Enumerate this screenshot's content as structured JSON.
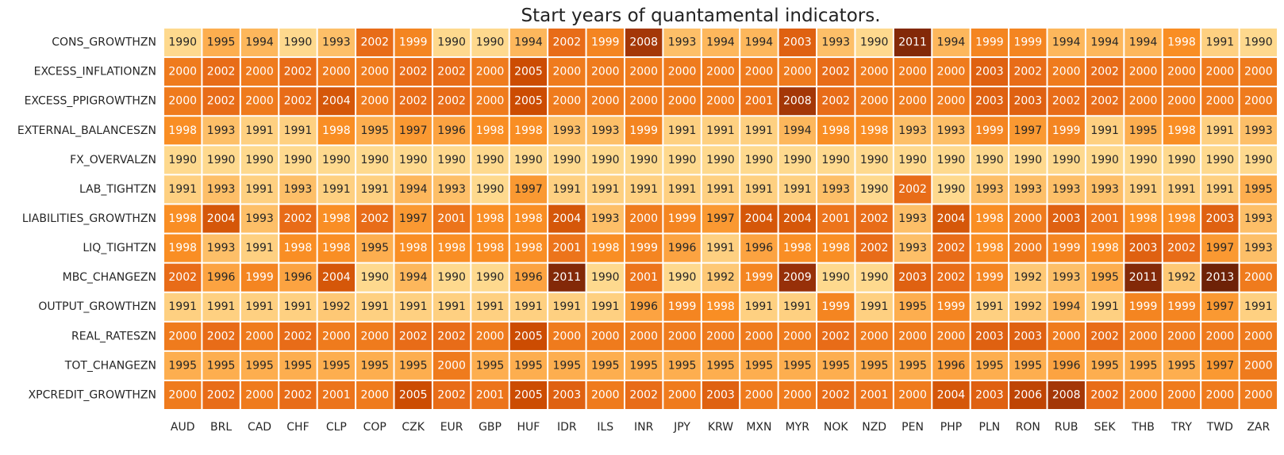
{
  "chart_data": {
    "type": "heatmap",
    "title": "Start years of quantamental indicators.",
    "xlabel": "",
    "ylabel": "",
    "columns": [
      "AUD",
      "BRL",
      "CAD",
      "CHF",
      "CLP",
      "COP",
      "CZK",
      "EUR",
      "GBP",
      "HUF",
      "IDR",
      "ILS",
      "INR",
      "JPY",
      "KRW",
      "MXN",
      "MYR",
      "NOK",
      "NZD",
      "PEN",
      "PHP",
      "PLN",
      "RON",
      "RUB",
      "SEK",
      "THB",
      "TRY",
      "TWD",
      "ZAR"
    ],
    "rows": [
      "CONS_GROWTHZN",
      "EXCESS_INFLATIONZN",
      "EXCESS_PPIGROWTHZN",
      "EXTERNAL_BALANCESZN",
      "FX_OVERVALZN",
      "LAB_TIGHTZN",
      "LIABILITIES_GROWTHZN",
      "LIQ_TIGHTZN",
      "MBC_CHANGEZN",
      "OUTPUT_GROWTHZN",
      "REAL_RATESZN",
      "TOT_CHANGEZN",
      "XPCREDIT_GROWTHZN"
    ],
    "values": [
      [
        1990,
        1995,
        1994,
        1990,
        1993,
        2002,
        1999,
        1990,
        1990,
        1994,
        2002,
        1999,
        2008,
        1993,
        1994,
        1994,
        2003,
        1993,
        1990,
        2011,
        1994,
        1999,
        1999,
        1994,
        1994,
        1994,
        1998,
        1991,
        1990
      ],
      [
        2000,
        2002,
        2000,
        2002,
        2000,
        2000,
        2002,
        2002,
        2000,
        2005,
        2000,
        2000,
        2000,
        2000,
        2000,
        2000,
        2000,
        2002,
        2000,
        2000,
        2000,
        2003,
        2002,
        2000,
        2002,
        2000,
        2000,
        2000,
        2000
      ],
      [
        2000,
        2002,
        2000,
        2002,
        2004,
        2000,
        2002,
        2002,
        2000,
        2005,
        2000,
        2000,
        2000,
        2000,
        2000,
        2001,
        2008,
        2002,
        2000,
        2000,
        2000,
        2003,
        2003,
        2002,
        2002,
        2000,
        2000,
        2000,
        2000
      ],
      [
        1998,
        1993,
        1991,
        1991,
        1998,
        1995,
        1997,
        1996,
        1998,
        1998,
        1993,
        1993,
        1999,
        1991,
        1991,
        1991,
        1994,
        1998,
        1998,
        1993,
        1993,
        1999,
        1997,
        1999,
        1991,
        1995,
        1998,
        1991,
        1993
      ],
      [
        1990,
        1990,
        1990,
        1990,
        1990,
        1990,
        1990,
        1990,
        1990,
        1990,
        1990,
        1990,
        1990,
        1990,
        1990,
        1990,
        1990,
        1990,
        1990,
        1990,
        1990,
        1990,
        1990,
        1990,
        1990,
        1990,
        1990,
        1990,
        1990
      ],
      [
        1991,
        1993,
        1991,
        1993,
        1991,
        1991,
        1994,
        1993,
        1990,
        1997,
        1991,
        1991,
        1991,
        1991,
        1991,
        1991,
        1991,
        1993,
        1990,
        2002,
        1990,
        1993,
        1993,
        1993,
        1993,
        1991,
        1991,
        1991,
        1995
      ],
      [
        1998,
        2004,
        1993,
        2002,
        1998,
        2002,
        1997,
        2001,
        1998,
        1998,
        2004,
        1993,
        2000,
        1999,
        1997,
        2004,
        2004,
        2001,
        2002,
        1993,
        2004,
        1998,
        2000,
        2003,
        2001,
        1998,
        1998,
        2003,
        1993
      ],
      [
        1998,
        1993,
        1991,
        1998,
        1998,
        1995,
        1998,
        1998,
        1998,
        1998,
        2001,
        1998,
        1999,
        1996,
        1991,
        1996,
        1998,
        1998,
        2002,
        1993,
        2002,
        1998,
        2000,
        1999,
        1998,
        2003,
        2002,
        1997,
        1993
      ],
      [
        2002,
        1996,
        1999,
        1996,
        2004,
        1990,
        1994,
        1990,
        1990,
        1996,
        2011,
        1990,
        2001,
        1990,
        1992,
        1999,
        2009,
        1990,
        1990,
        2003,
        2002,
        1999,
        1992,
        1993,
        1995,
        2011,
        1992,
        2013,
        2000
      ],
      [
        1991,
        1991,
        1991,
        1991,
        1992,
        1991,
        1991,
        1991,
        1991,
        1991,
        1991,
        1991,
        1996,
        1999,
        1998,
        1991,
        1991,
        1999,
        1991,
        1995,
        1999,
        1991,
        1992,
        1994,
        1991,
        1999,
        1999,
        1997,
        1991
      ],
      [
        2000,
        2002,
        2000,
        2002,
        2000,
        2000,
        2002,
        2002,
        2000,
        2005,
        2000,
        2000,
        2000,
        2000,
        2000,
        2000,
        2000,
        2002,
        2000,
        2000,
        2000,
        2003,
        2003,
        2000,
        2002,
        2000,
        2000,
        2000,
        2000
      ],
      [
        1995,
        1995,
        1995,
        1995,
        1995,
        1995,
        1995,
        2000,
        1995,
        1995,
        1995,
        1995,
        1995,
        1995,
        1995,
        1995,
        1995,
        1995,
        1995,
        1995,
        1996,
        1995,
        1995,
        1996,
        1995,
        1995,
        1995,
        1997,
        2000
      ],
      [
        2000,
        2002,
        2000,
        2002,
        2001,
        2000,
        2005,
        2002,
        2001,
        2005,
        2003,
        2000,
        2002,
        2000,
        2003,
        2000,
        2000,
        2002,
        2001,
        2000,
        2004,
        2003,
        2006,
        2008,
        2002,
        2000,
        2000,
        2000,
        2000
      ]
    ],
    "color_scale": {
      "stops": [
        {
          "value": 1990,
          "color": "#fed98e"
        },
        {
          "value": 1995,
          "color": "#fdae4f"
        },
        {
          "value": 1998,
          "color": "#f98e24"
        },
        {
          "value": 2000,
          "color": "#ef7b1d"
        },
        {
          "value": 2002,
          "color": "#e86c18"
        },
        {
          "value": 2005,
          "color": "#cc4c02"
        },
        {
          "value": 2009,
          "color": "#973009"
        },
        {
          "value": 2013,
          "color": "#6e2207"
        }
      ],
      "dark_text": "#262626",
      "light_text": "#ffffff",
      "light_text_threshold": 1997.5
    },
    "grid": false,
    "legend": "none"
  }
}
